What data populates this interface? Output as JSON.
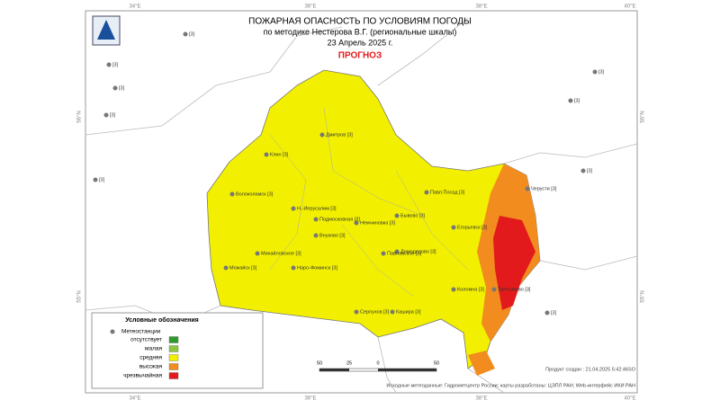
{
  "header": {
    "title": "ПОЖАРНАЯ ОПАСНОСТЬ ПО УСЛОВИЯМ ПОГОДЫ",
    "method": "по методике Нестерова В.Г. (региональные шкалы)",
    "date": "23 Апрель 2025 г.",
    "forecast": "ПРОГНОЗ"
  },
  "legend": {
    "title": "Условные обозначения",
    "station": "Метеостанции",
    "items": [
      "отсутствует",
      "малая",
      "средняя",
      "высокая",
      "чрезвычайная"
    ],
    "colors": [
      "#2e9a2e",
      "#8cc63f",
      "#f2f000",
      "#f28c1e",
      "#e31a1c"
    ]
  },
  "stations": [
    "Дмитров [3]",
    "Клин [3]",
    "Волоколамск [3]",
    "Н.-Иерусалим [3]",
    "Немчиновка [3]",
    "Подмосковная [3]",
    "Внуково [3]",
    "Бывово [3]",
    "Домодедово [3]",
    "Михайловское [3]",
    "Павловское [3]",
    "Можайск [3]",
    "Наро-Фоминск [3]",
    "Павл.Посад [3]",
    "Егорьевск [3]",
    "Черусти [3]",
    "Коломна [3]",
    "Третьяково [3]",
    "Серпухов [3]",
    "Кашира [3]"
  ],
  "outside_marker": "[3]",
  "scale": [
    "50",
    "25",
    "0",
    "50"
  ],
  "coords": {
    "top": [
      "34°E",
      "36°E",
      "38°E",
      "40°E"
    ],
    "left": [
      "56°N",
      "55°N"
    ]
  },
  "footer": {
    "created": "Продукт создан : 21.04.2025 5:42:46SO",
    "source": "Исходные метеоданные: Гидрометцентр России; карты разработаны: ЦЭПЛ РАН; Web-интерфейс ИКИ РАН"
  }
}
